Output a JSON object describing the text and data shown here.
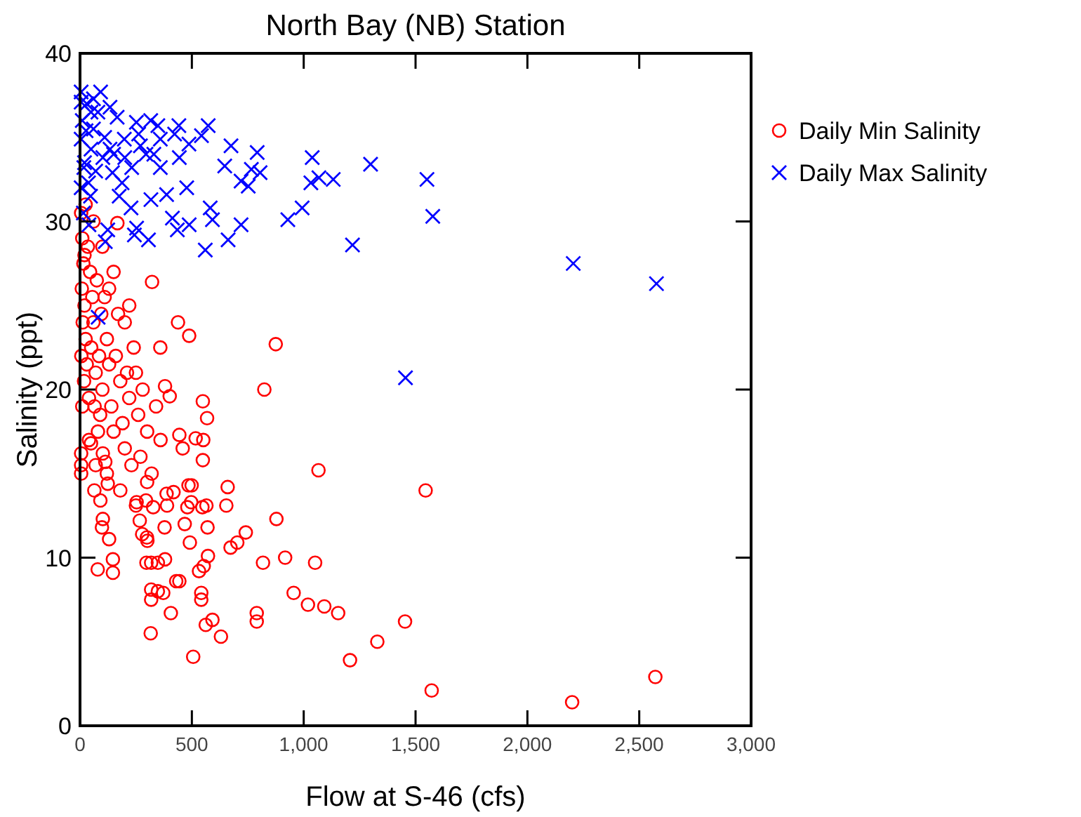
{
  "chart_data": {
    "type": "scatter",
    "title": "North Bay (NB) Station",
    "xlabel": "Flow at S-46 (cfs)",
    "ylabel": "Salinity (ppt)",
    "xlim": [
      0,
      3000
    ],
    "xticks": [
      0,
      500,
      {
        "value": 1000,
        "label": "1,000"
      },
      {
        "value": 1500,
        "label": "1,500"
      },
      {
        "value": 2000,
        "label": "2,000"
      },
      {
        "value": 2500,
        "label": "2,500"
      },
      {
        "value": 3000,
        "label": "3,000"
      }
    ],
    "ylim": [
      0,
      40
    ],
    "yticks": [
      0,
      10,
      20,
      30,
      40
    ],
    "grid": false,
    "legend": "right",
    "series": [
      {
        "name": "Daily Min Salinity",
        "color": "#ff0000",
        "marker": "circle",
        "x": [
          1545,
          1453,
          1572,
          2200,
          2572,
          824,
          1066,
          878,
          917,
          1051,
          818,
          955,
          1019,
          1092,
          1154,
          790,
          790,
          1329,
          1207,
          741,
          703,
          673,
          660,
          654,
          572,
          553,
          532,
          542,
          542,
          592,
          562,
          630,
          506,
          316,
          406,
          444,
          430,
          318,
          348,
          372,
          318,
          380,
          348,
          318,
          297,
          147,
          79,
          147,
          491,
          468,
          570,
          378,
          278,
          299,
          301,
          130,
          98,
          102,
          547,
          497,
          480,
          499,
          485,
          565,
          418,
          387,
          389,
          327,
          250,
          253,
          295,
          267,
          64,
          91,
          124,
          5,
          5,
          5,
          49,
          102,
          113,
          444,
          459,
          517,
          551,
          549,
          568,
          549,
          380,
          401,
          322,
          438,
          488,
          875,
          359,
          167,
          5,
          10,
          15,
          8,
          20,
          12,
          25,
          6,
          30,
          18,
          40,
          10,
          35,
          45,
          55,
          60,
          50,
          70,
          65,
          80,
          90,
          100,
          85,
          95,
          75,
          110,
          120,
          130,
          140,
          150,
          160,
          170,
          180,
          190,
          200,
          210,
          220,
          230,
          240,
          260,
          270,
          280,
          300,
          320,
          340,
          360,
          150,
          130,
          100,
          60,
          25,
          20,
          200,
          250,
          120,
          70,
          180,
          40,
          220,
          300
        ],
        "values": [
          14.0,
          6.2,
          2.1,
          1.4,
          2.9,
          20.0,
          15.2,
          12.3,
          10.0,
          9.7,
          9.7,
          7.9,
          7.2,
          7.1,
          6.7,
          6.7,
          6.2,
          5.0,
          3.9,
          11.5,
          10.9,
          10.6,
          14.2,
          13.1,
          10.1,
          9.5,
          9.2,
          7.9,
          7.5,
          6.3,
          6.0,
          5.3,
          4.1,
          5.5,
          6.7,
          8.6,
          8.6,
          8.1,
          8.0,
          7.9,
          7.5,
          9.9,
          9.7,
          9.7,
          9.7,
          9.9,
          9.3,
          9.1,
          10.9,
          12.0,
          11.8,
          11.8,
          11.4,
          11.2,
          11.0,
          11.1,
          11.8,
          12.3,
          13.0,
          13.3,
          13.0,
          14.3,
          14.3,
          13.1,
          13.9,
          13.8,
          13.1,
          13.0,
          13.1,
          13.3,
          13.4,
          12.2,
          14.0,
          13.4,
          14.4,
          16.2,
          15.5,
          15.0,
          16.8,
          16.2,
          15.7,
          17.3,
          16.5,
          17.1,
          17.0,
          15.8,
          18.3,
          19.3,
          20.2,
          19.6,
          26.4,
          24.0,
          23.2,
          22.7,
          22.5,
          29.9,
          30.5,
          29.0,
          27.5,
          26.0,
          25.0,
          24.0,
          23.0,
          22.0,
          21.5,
          20.5,
          19.5,
          19.0,
          28.5,
          27.0,
          25.5,
          24.0,
          22.5,
          21.0,
          19.0,
          17.5,
          18.5,
          20.0,
          22.0,
          24.5,
          26.5,
          25.5,
          23.0,
          21.5,
          19.0,
          17.5,
          22.0,
          24.5,
          20.5,
          18.0,
          16.5,
          21.0,
          19.5,
          15.5,
          22.5,
          18.5,
          16.0,
          20.0,
          17.5,
          15.0,
          19.0,
          17.0,
          27.0,
          26.0,
          28.5,
          30.0,
          31.0,
          28.0,
          24.0,
          21.0,
          15.0,
          15.5,
          14.0,
          17.0,
          25.0,
          14.5
        ]
      },
      {
        "name": "Daily Max Salinity",
        "color": "#0000ff",
        "marker": "cross",
        "x": [
          2577,
          2205,
          1551,
          1577,
          1455,
          573,
          543,
          442,
          675,
          792,
          1038,
          1299,
          647,
          766,
          805,
          720,
          752,
          1032,
          1068,
          1132,
          993,
          929,
          1218,
          720,
          662,
          560,
          592,
          582,
          488,
          435,
          413,
          306,
          253,
          243,
          387,
          477,
          317,
          124,
          113,
          81,
          228,
          175,
          47,
          5,
          92,
          134,
          166,
          252,
          316,
          359,
          295,
          231,
          145,
          38,
          5,
          27,
          5,
          49,
          134,
          198,
          262,
          348,
          423,
          487,
          444,
          359,
          188,
          102,
          17,
          5,
          49,
          10,
          20,
          30,
          60,
          70,
          80,
          110,
          150,
          200,
          270,
          330,
          15,
          40,
          60
        ],
        "values": [
          26.3,
          27.5,
          32.5,
          30.3,
          20.7,
          35.7,
          35.1,
          35.7,
          34.5,
          34.1,
          33.8,
          33.4,
          33.3,
          33.1,
          32.9,
          32.4,
          32.1,
          32.3,
          32.6,
          32.5,
          30.8,
          30.1,
          28.6,
          29.8,
          28.9,
          28.3,
          30.1,
          30.8,
          29.8,
          29.5,
          30.2,
          28.9,
          29.6,
          29.2,
          31.6,
          32.0,
          31.3,
          29.5,
          28.8,
          24.3,
          30.8,
          31.5,
          31.5,
          37.7,
          37.7,
          36.8,
          36.2,
          35.9,
          36.0,
          34.9,
          34.0,
          33.2,
          32.9,
          32.3,
          32.0,
          35.4,
          34.9,
          34.3,
          34.3,
          34.9,
          35.2,
          35.7,
          35.2,
          34.6,
          33.8,
          33.2,
          32.3,
          33.8,
          33.2,
          37.1,
          36.5,
          36.0,
          33.5,
          37.0,
          35.5,
          33.0,
          36.5,
          35.0,
          34.0,
          33.8,
          34.5,
          34.0,
          30.5,
          29.8,
          37.3
        ]
      }
    ]
  }
}
